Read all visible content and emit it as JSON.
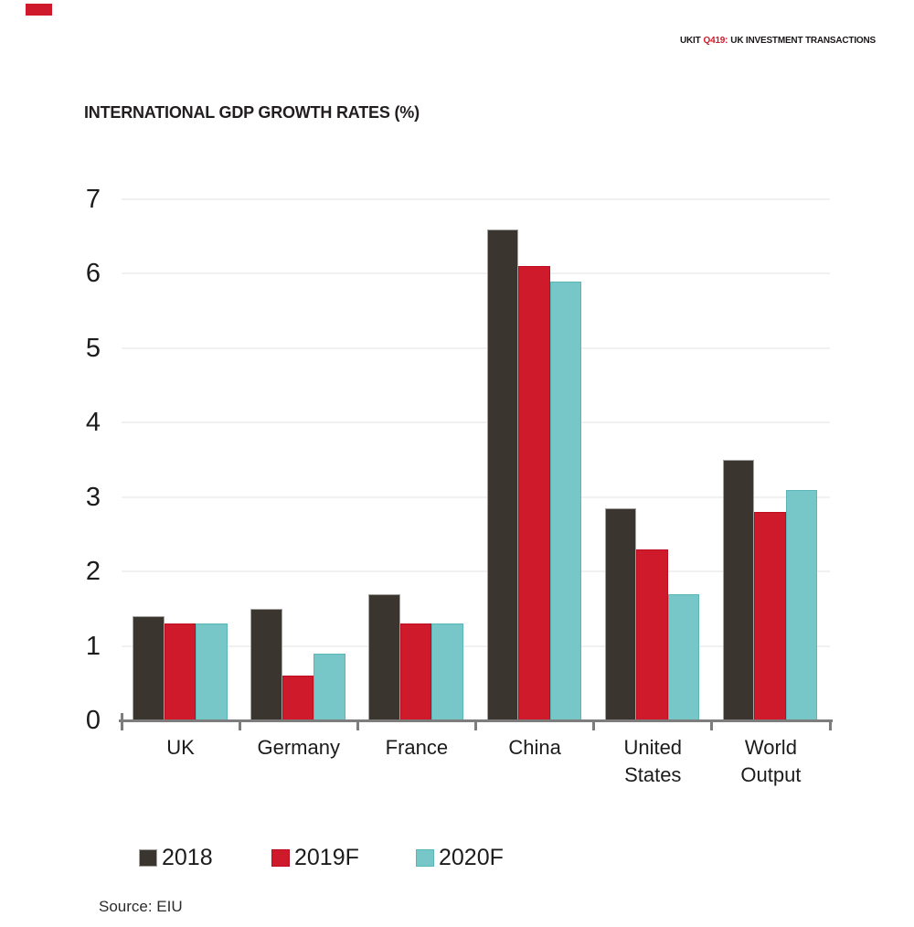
{
  "page": {
    "header": {
      "prefix": "UKIT",
      "issue": "Q419:",
      "title": "UK INVESTMENT TRANSACTIONS"
    },
    "accent_color": "#CE1A2B",
    "corner_tab_color": "#CE1A2B"
  },
  "chart_data": {
    "type": "bar",
    "title": "INTERNATIONAL GDP GROWTH RATES (%)",
    "categories": [
      "UK",
      "Germany",
      "France",
      "China",
      "United States",
      "World Output"
    ],
    "series": [
      {
        "name": "2018",
        "color": "#3A362F",
        "border_color": "#A5A3A0",
        "values": [
          1.4,
          1.5,
          1.7,
          6.6,
          2.85,
          3.5
        ]
      },
      {
        "name": "2019F",
        "color": "#CE1A2B",
        "border_color": "#BC0E20",
        "values": [
          1.3,
          0.6,
          1.3,
          6.1,
          2.3,
          2.8
        ]
      },
      {
        "name": "2020F",
        "color": "#77C6C8",
        "border_color": "#5AB6B9",
        "values": [
          1.3,
          0.9,
          1.3,
          5.9,
          1.7,
          3.1
        ]
      }
    ],
    "ylim": [
      0,
      7
    ],
    "yticks": [
      0,
      1,
      2,
      3,
      4,
      5,
      6,
      7
    ],
    "grid": true,
    "grid_color": "#F1F1F1",
    "axis_color": "#7D7D7D",
    "legend_position": "bottom",
    "source": "Source: EIU"
  }
}
